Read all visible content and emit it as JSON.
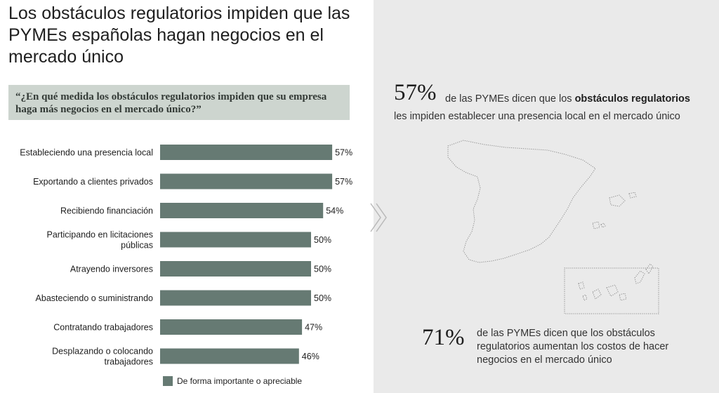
{
  "title": "Los obstáculos regulatorios impiden que las PYMEs españolas hagan negocios en el mercado único",
  "question": "“¿En qué medida los obstáculos regulatorios impiden que su empresa haga más negocios en el mercado único?”",
  "legend_label": "De forma importante o apreciable",
  "colors": {
    "bar": "#667a73",
    "question_bg": "#cdd5cf",
    "right_bg": "#eaeaea"
  },
  "chart_data": {
    "type": "bar",
    "orientation": "horizontal",
    "categories": [
      "Estableciendo una presencia local",
      "Exportando a clientes privados",
      "Recibiendo financiación",
      "Participando en licitaciones públicas",
      "Atrayendo inversores",
      "Abasteciendo o suministrando",
      "Contratando trabajadores",
      "Desplazando o colocando trabajadores"
    ],
    "category_lines": [
      [
        "Estableciendo una presencia local"
      ],
      [
        "Exportando a clientes privados"
      ],
      [
        "Recibiendo financiación"
      ],
      [
        "Participando en licitaciones",
        "públicas"
      ],
      [
        "Atrayendo inversores"
      ],
      [
        "Abasteciendo o suministrando"
      ],
      [
        "Contratando trabajadores"
      ],
      [
        "Desplazando o colocando",
        "trabajadores"
      ]
    ],
    "series": [
      {
        "name": "De forma importante o apreciable",
        "values": [
          57,
          57,
          54,
          50,
          50,
          50,
          47,
          46
        ]
      }
    ],
    "value_labels": [
      "57%",
      "57%",
      "54%",
      "50%",
      "50%",
      "50%",
      "47%",
      "46%"
    ],
    "xlim": [
      0,
      100
    ],
    "grid": false,
    "legend_position": "bottom"
  },
  "stat1": {
    "pct": "57%",
    "text_before": "de las PYMEs dicen que los ",
    "text_bold": "obstáculos regulatorios",
    "line2": "les impiden establecer una presencia local en el mercado único"
  },
  "stat2": {
    "pct": "71%",
    "text": "de las PYMEs dicen que los obstáculos regulatorios aumentan los costos de hacer negocios en el mercado único"
  }
}
